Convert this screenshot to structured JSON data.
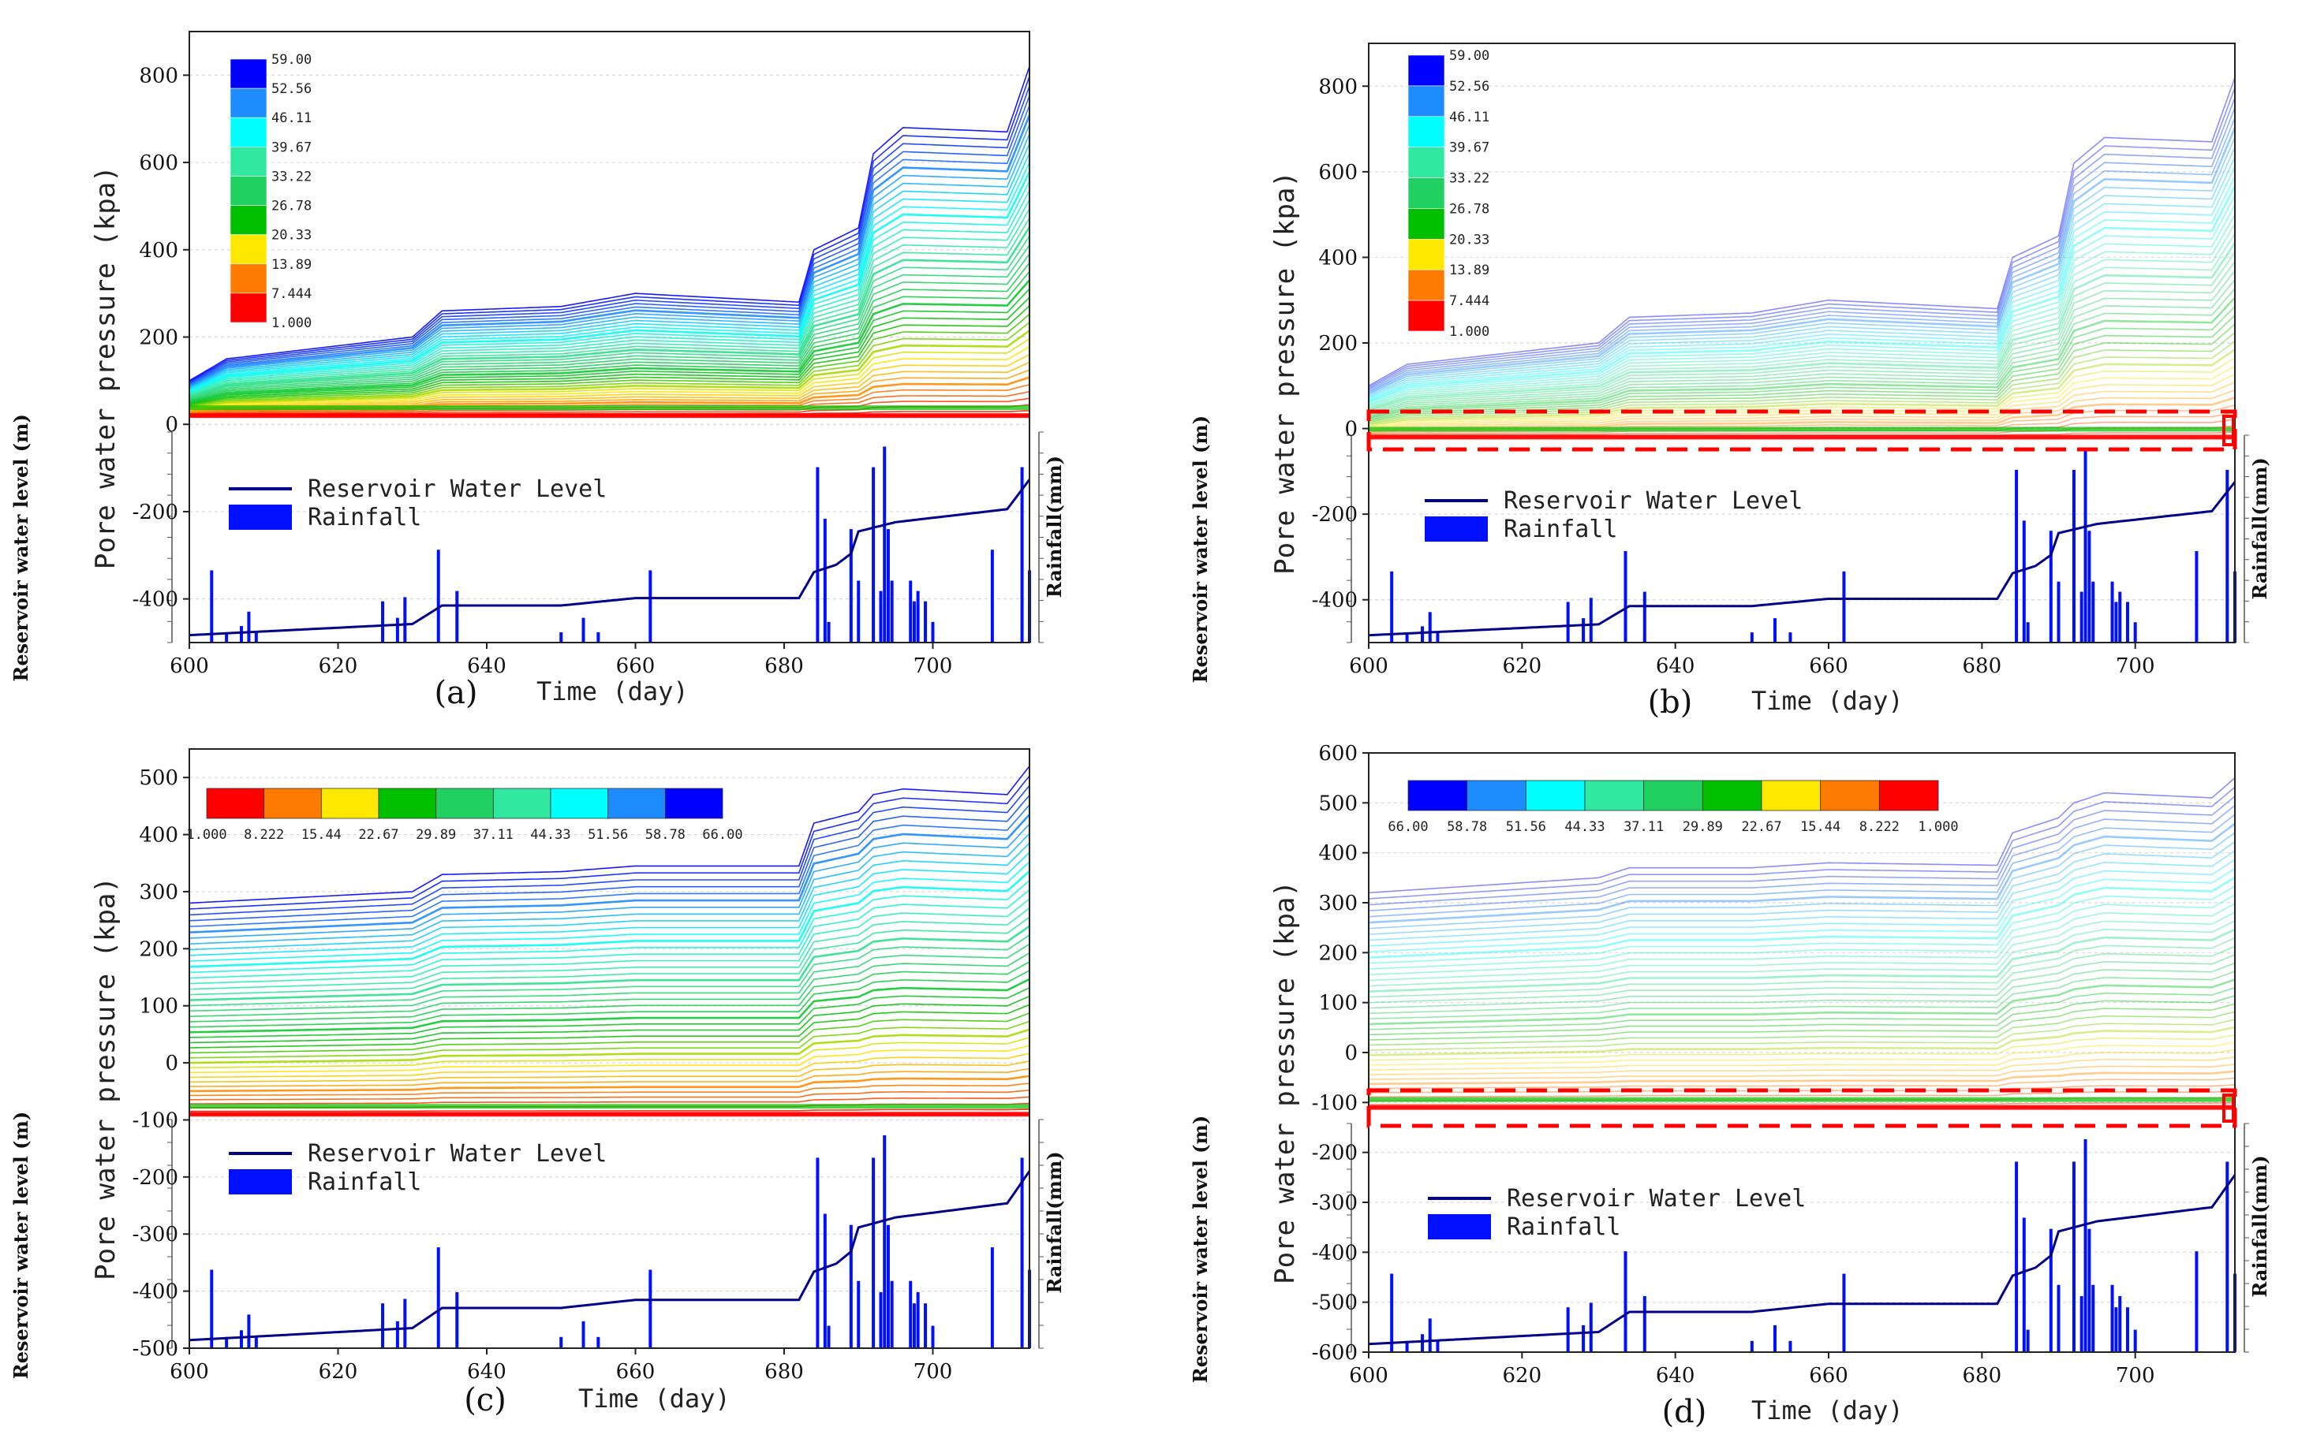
{
  "colors": {
    "scale": [
      "#ff0000",
      "#ff7a00",
      "#ffe800",
      "#00c000",
      "#20d060",
      "#30e8a0",
      "#00ffff",
      "#1e8cff",
      "#0000ff"
    ],
    "rain": "#0010ff",
    "water_level": "#00008b",
    "highlight": "#ff0000"
  },
  "legend": {
    "water_label": "Reservoir Water Level",
    "rain_label": "Rainfall"
  },
  "common": {
    "xlabel": "Time (day)",
    "ylabel": "Pore water pressure (kpa)",
    "sub_ylabel_left": "Reservoir water level (m)",
    "sub_ylabel_right": "Rainfall(mm)",
    "xticks": [
      "600",
      "620",
      "640",
      "660",
      "680",
      "700"
    ]
  },
  "chart_data": [
    {
      "panel": "(a)",
      "type": "line",
      "xlim": [
        600,
        713
      ],
      "ylim": [
        -500,
        900
      ],
      "yticks": [
        "800",
        "600",
        "400",
        "200",
        "0",
        "-200",
        "-400"
      ],
      "colorbar_ticks": [
        "59.00",
        "52.56",
        "46.11",
        "39.67",
        "33.22",
        "26.78",
        "20.33",
        "13.89",
        "7.444",
        "1.000"
      ],
      "curve_top_values": {
        "x": [
          600,
          605,
          630,
          634,
          650,
          660,
          682,
          684,
          690,
          692,
          696,
          710,
          713
        ],
        "y": [
          100,
          150,
          200,
          260,
          270,
          300,
          280,
          400,
          450,
          620,
          680,
          670,
          820
        ]
      },
      "baseline_kpa": 20,
      "highlight_box": false
    },
    {
      "panel": "(b)",
      "type": "line",
      "xlim": [
        600,
        713
      ],
      "ylim": [
        -500,
        900
      ],
      "yticks": [
        "800",
        "600",
        "400",
        "200",
        "0",
        "-200",
        "-400"
      ],
      "colorbar_ticks": [
        "59.00",
        "52.56",
        "46.11",
        "39.67",
        "33.22",
        "26.78",
        "20.33",
        "13.89",
        "7.444",
        "1.000"
      ],
      "curve_top_values": {
        "x": [
          600,
          605,
          630,
          634,
          650,
          660,
          682,
          684,
          690,
          692,
          696,
          710,
          713
        ],
        "y": [
          100,
          150,
          200,
          260,
          270,
          300,
          280,
          400,
          450,
          620,
          680,
          670,
          820
        ]
      },
      "baseline_kpa": -20,
      "highlight_box": true
    },
    {
      "panel": "(c)",
      "type": "line",
      "xlim": [
        600,
        713
      ],
      "ylim": [
        -500,
        550
      ],
      "yticks": [
        "500",
        "400",
        "300",
        "200",
        "100",
        "0",
        "-100",
        "-200",
        "-300",
        "-400",
        "-500"
      ],
      "colorbar_ticks": [
        "1.000",
        "8.222",
        "15.44",
        "22.67",
        "29.89",
        "37.11",
        "44.33",
        "51.56",
        "58.78",
        "66.00"
      ],
      "curve_top_values": {
        "x": [
          600,
          630,
          634,
          650,
          660,
          682,
          684,
          690,
          692,
          696,
          710,
          713
        ],
        "y": [
          280,
          300,
          330,
          335,
          345,
          345,
          420,
          440,
          470,
          480,
          470,
          520
        ]
      },
      "baseline_kpa": -90,
      "highlight_box": false
    },
    {
      "panel": "(d)",
      "type": "line",
      "xlim": [
        600,
        713
      ],
      "ylim": [
        -600,
        600
      ],
      "yticks": [
        "600",
        "500",
        "400",
        "300",
        "200",
        "100",
        "0",
        "-100",
        "-200",
        "-300",
        "-400",
        "-500",
        "-600"
      ],
      "colorbar_ticks": [
        "66.00",
        "58.78",
        "51.56",
        "44.33",
        "37.11",
        "29.89",
        "22.67",
        "15.44",
        "8.222",
        "1.000"
      ],
      "curve_top_values": {
        "x": [
          600,
          630,
          634,
          650,
          660,
          682,
          684,
          690,
          692,
          696,
          710,
          713
        ],
        "y": [
          320,
          350,
          370,
          370,
          380,
          375,
          440,
          470,
          500,
          520,
          510,
          550
        ]
      },
      "baseline_kpa": -110,
      "highlight_box": true
    }
  ]
}
